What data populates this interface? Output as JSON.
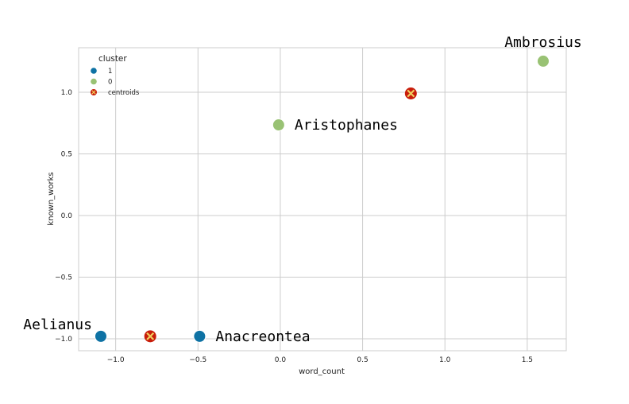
{
  "chart_data": {
    "type": "scatter",
    "title": "",
    "xlabel": "word_count",
    "ylabel": "known_works",
    "xlim": [
      -1.225,
      1.737
    ],
    "ylim": [
      -1.097,
      1.361
    ],
    "xticks": [
      -1.0,
      -0.5,
      0.0,
      0.5,
      1.0,
      1.5
    ],
    "xtick_labels": [
      "−1.0",
      "−0.5",
      "0.0",
      "0.5",
      "1.0",
      "1.5"
    ],
    "yticks": [
      -1.0,
      -0.5,
      0.0,
      0.5,
      1.0
    ],
    "ytick_labels": [
      "−1.0",
      "−0.5",
      "0.0",
      "0.5",
      "1.0"
    ],
    "grid": true,
    "legend": {
      "title": "cluster",
      "placement": "top-left",
      "entries": [
        {
          "label": "1",
          "color": "#0e72a4"
        },
        {
          "label": "0",
          "color": "#99c274"
        },
        {
          "label": "centroids",
          "color": "#c81c0a"
        }
      ]
    },
    "points": [
      {
        "label": "Aelianus",
        "x": -1.09,
        "y": -0.98,
        "cluster": "1"
      },
      {
        "label": "Anacreontea",
        "x": -0.49,
        "y": -0.98,
        "cluster": "1"
      },
      {
        "label": "Aristophanes",
        "x": -0.01,
        "y": 0.735,
        "cluster": "0"
      },
      {
        "label": "Ambrosius",
        "x": 1.597,
        "y": 1.252,
        "cluster": "0"
      }
    ],
    "centroids": [
      {
        "x": -0.79,
        "y": -0.98
      },
      {
        "x": 0.793,
        "y": 0.99
      }
    ],
    "colors": {
      "cluster_1": "#0e72a4",
      "cluster_0": "#99c274",
      "centroid_fill": "#c81c0a",
      "centroid_mark": "#f0d060",
      "grid": "#cccccc"
    }
  }
}
